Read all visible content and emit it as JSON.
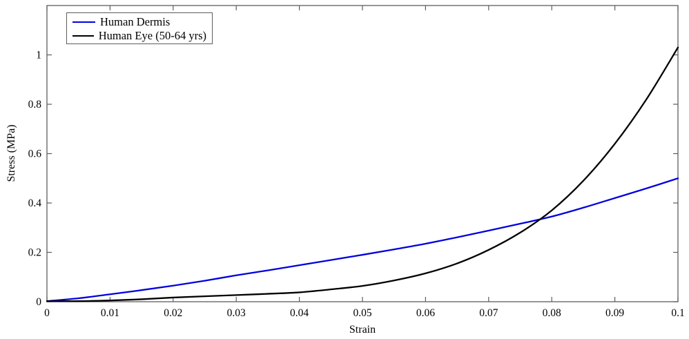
{
  "figure": {
    "background": "#ffffff",
    "axis_color": "#5c5c5c",
    "text_color": "#000000"
  },
  "legend": {
    "position": "top-left",
    "entries": [
      {
        "label": "Human Dermis",
        "color": "#0000dd"
      },
      {
        "label": "Human Eye (50-64 yrs)",
        "color": "#000000"
      }
    ]
  },
  "chart_data": {
    "type": "line",
    "title": "",
    "xlabel": "Strain",
    "ylabel": "Stress (MPa)",
    "xlim": [
      0,
      0.1
    ],
    "ylim": [
      0,
      1.2
    ],
    "grid": false,
    "legend_position": "top-left",
    "xticks": [
      0,
      0.01,
      0.02,
      0.03,
      0.04,
      0.05,
      0.06,
      0.07,
      0.08,
      0.09,
      0.1
    ],
    "xtick_labels": [
      "0",
      "0.01",
      "0.02",
      "0.03",
      "0.04",
      "0.05",
      "0.06",
      "0.07",
      "0.08",
      "0.09",
      "0.1"
    ],
    "yticks": [
      0,
      0.2,
      0.4,
      0.6,
      0.8,
      1
    ],
    "ytick_labels": [
      "0",
      "0.2",
      "0.4",
      "0.6",
      "0.8",
      "1"
    ],
    "x": [
      0,
      0.005,
      0.01,
      0.015,
      0.02,
      0.025,
      0.03,
      0.035,
      0.04,
      0.045,
      0.05,
      0.055,
      0.06,
      0.065,
      0.07,
      0.075,
      0.08,
      0.085,
      0.09,
      0.095,
      0.1
    ],
    "series": [
      {
        "name": "Human Dermis",
        "color": "#0000dd",
        "line_width": 2.3,
        "values": [
          0,
          0.014,
          0.03,
          0.047,
          0.065,
          0.085,
          0.107,
          0.127,
          0.148,
          0.169,
          0.19,
          0.212,
          0.235,
          0.261,
          0.288,
          0.316,
          0.345,
          0.381,
          0.42,
          0.459,
          0.5
        ]
      },
      {
        "name": "Human Eye (50-64 yrs)",
        "color": "#000000",
        "line_width": 2.3,
        "values": [
          0,
          0.002,
          0.005,
          0.01,
          0.017,
          0.022,
          0.027,
          0.032,
          0.038,
          0.05,
          0.064,
          0.086,
          0.115,
          0.155,
          0.21,
          0.28,
          0.37,
          0.49,
          0.64,
          0.82,
          1.03
        ]
      }
    ],
    "annotations": {
      "curve_intersection": {
        "x": 0.077,
        "y": 0.32
      }
    }
  }
}
